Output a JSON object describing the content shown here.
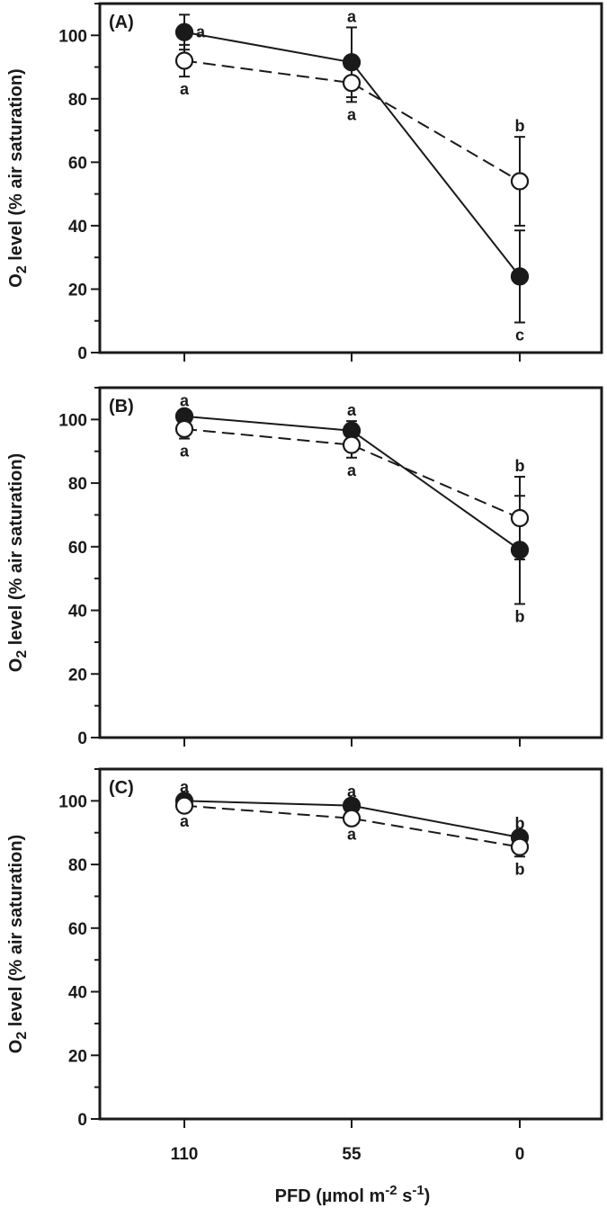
{
  "chart_data": [
    {
      "type": "line",
      "panel_label": "(A)",
      "ylabel": "O2 level (% air saturation)",
      "ylim": [
        0,
        110
      ],
      "yticks": [
        0,
        20,
        40,
        60,
        80,
        100
      ],
      "categories": [
        "110",
        "55",
        "0"
      ],
      "series": [
        {
          "marker": "filled-circle",
          "line": "solid",
          "values": [
            101,
            91.5,
            24
          ],
          "errors": [
            5.5,
            11,
            14.5
          ],
          "letters": [
            "a",
            "a",
            "c"
          ]
        },
        {
          "marker": "open-circle",
          "line": "dashed",
          "values": [
            92,
            85,
            54
          ],
          "errors": [
            5,
            6,
            14
          ],
          "letters": [
            "a",
            "a",
            "b"
          ]
        }
      ]
    },
    {
      "type": "line",
      "panel_label": "(B)",
      "ylabel": "O2 level (% air saturation)",
      "ylim": [
        0,
        110
      ],
      "yticks": [
        0,
        20,
        40,
        60,
        80,
        100
      ],
      "categories": [
        "110",
        "55",
        "0"
      ],
      "series": [
        {
          "marker": "filled-circle",
          "line": "solid",
          "values": [
            101,
            96.5,
            59
          ],
          "errors": [
            1.5,
            3,
            17
          ],
          "letters": [
            "a",
            "a",
            "b"
          ]
        },
        {
          "marker": "open-circle",
          "line": "dashed",
          "values": [
            97,
            92,
            69
          ],
          "errors": [
            3,
            4,
            13
          ],
          "letters": [
            "a",
            "a",
            "b"
          ]
        }
      ]
    },
    {
      "type": "line",
      "panel_label": "(C)",
      "ylabel": "O2 level (% air saturation)",
      "ylim": [
        0,
        110
      ],
      "yticks": [
        0,
        20,
        40,
        60,
        80,
        100
      ],
      "categories": [
        "110",
        "55",
        "0"
      ],
      "series": [
        {
          "marker": "filled-circle",
          "line": "solid",
          "values": [
            100,
            98.5,
            88.5
          ],
          "errors": [
            1,
            1,
            1
          ],
          "letters": [
            "a",
            "a",
            "b"
          ]
        },
        {
          "marker": "open-circle",
          "line": "dashed",
          "values": [
            98.5,
            94.5,
            85.5
          ],
          "errors": [
            1,
            1,
            3
          ],
          "letters": [
            "a",
            "a",
            "b"
          ]
        }
      ]
    }
  ],
  "xlabel": "PFD (µmol m-2 s-1)",
  "colors": {
    "ink": "#1a1a1a",
    "open_fill": "#ffffff"
  }
}
